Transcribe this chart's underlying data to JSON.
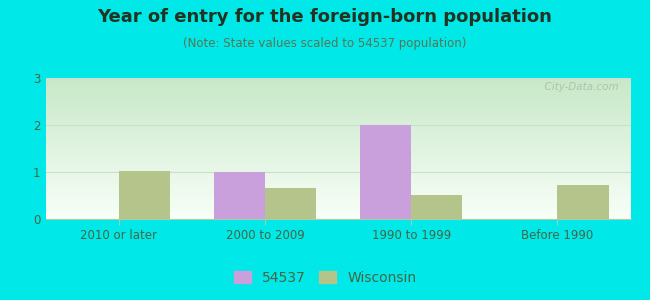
{
  "title": "Year of entry for the foreign-born population",
  "subtitle": "(Note: State values scaled to 54537 population)",
  "categories": [
    "2010 or later",
    "2000 to 2009",
    "1990 to 1999",
    "Before 1990"
  ],
  "series_54537": [
    0,
    1.0,
    2.0,
    0
  ],
  "series_wisconsin": [
    1.03,
    0.65,
    0.52,
    0.72
  ],
  "color_54537": "#c9a0dc",
  "color_wisconsin": "#b5c48a",
  "ylim": [
    0,
    3
  ],
  "yticks": [
    0,
    1,
    2,
    3
  ],
  "bar_width": 0.35,
  "bg_color": "#00e8e8",
  "watermark": "  City-Data.com",
  "legend_54537": "54537",
  "legend_wisconsin": "Wisconsin",
  "title_fontsize": 13,
  "subtitle_fontsize": 8.5,
  "tick_fontsize": 8.5,
  "legend_fontsize": 10,
  "grid_color": "#ccddcc",
  "plot_bg_topleft": "#c8e8c8",
  "plot_bg_bottomright": "#f0fff0"
}
